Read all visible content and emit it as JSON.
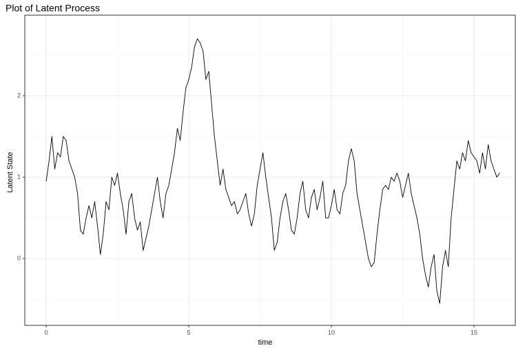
{
  "chart_data": {
    "type": "line",
    "title": "Plot of Latent Process",
    "xlabel": "time",
    "ylabel": "Latent State",
    "xlim": [
      -0.75,
      16.45
    ],
    "ylim": [
      -0.82,
      2.99
    ],
    "xticks": [
      0,
      5,
      10,
      15
    ],
    "yticks": [
      0,
      1,
      2
    ],
    "x_minor_ticks": [
      2.5,
      7.5,
      12.5
    ],
    "y_minor_ticks": [
      -0.5,
      0.5,
      1.5,
      2.5
    ],
    "grid": true,
    "x": [
      0,
      0.1,
      0.2,
      0.3,
      0.4,
      0.5,
      0.6,
      0.7,
      0.8,
      0.9,
      1,
      1.1,
      1.2,
      1.3,
      1.4,
      1.5,
      1.6,
      1.7,
      1.8,
      1.9,
      2,
      2.1,
      2.2,
      2.3,
      2.4,
      2.5,
      2.6,
      2.7,
      2.8,
      2.9,
      3,
      3.1,
      3.2,
      3.3,
      3.4,
      3.5,
      3.6,
      3.7,
      3.8,
      3.9,
      4,
      4.1,
      4.2,
      4.3,
      4.4,
      4.5,
      4.6,
      4.7,
      4.8,
      4.9,
      5,
      5.1,
      5.2,
      5.3,
      5.4,
      5.5,
      5.6,
      5.7,
      5.8,
      5.9,
      6,
      6.1,
      6.2,
      6.3,
      6.4,
      6.5,
      6.6,
      6.7,
      6.8,
      6.9,
      7,
      7.1,
      7.2,
      7.3,
      7.4,
      7.5,
      7.6,
      7.7,
      7.8,
      7.9,
      8,
      8.1,
      8.2,
      8.3,
      8.4,
      8.5,
      8.6,
      8.7,
      8.8,
      8.9,
      9,
      9.1,
      9.2,
      9.3,
      9.4,
      9.5,
      9.6,
      9.7,
      9.8,
      9.9,
      10,
      10.1,
      10.2,
      10.3,
      10.4,
      10.5,
      10.6,
      10.7,
      10.8,
      10.9,
      11,
      11.1,
      11.2,
      11.3,
      11.4,
      11.5,
      11.6,
      11.7,
      11.8,
      11.9,
      12,
      12.1,
      12.2,
      12.3,
      12.4,
      12.5,
      12.6,
      12.7,
      12.8,
      12.9,
      13,
      13.1,
      13.2,
      13.3,
      13.4,
      13.5,
      13.6,
      13.7,
      13.8,
      13.9,
      14,
      14.1,
      14.2,
      14.3,
      14.4,
      14.5,
      14.6,
      14.7,
      14.8,
      14.9,
      15,
      15.1,
      15.2,
      15.3,
      15.4,
      15.5,
      15.6,
      15.7,
      15.8,
      15.9
    ],
    "series": [
      {
        "name": "latent",
        "color": "#000000",
        "values": [
          0.95,
          1.2,
          1.5,
          1.1,
          1.3,
          1.25,
          1.5,
          1.45,
          1.2,
          1.1,
          1.0,
          0.8,
          0.35,
          0.3,
          0.5,
          0.65,
          0.5,
          0.7,
          0.4,
          0.05,
          0.3,
          0.7,
          0.6,
          1.0,
          0.9,
          1.05,
          0.8,
          0.6,
          0.3,
          0.7,
          0.8,
          0.5,
          0.35,
          0.45,
          0.1,
          0.25,
          0.4,
          0.6,
          0.8,
          1.0,
          0.7,
          0.5,
          0.8,
          0.9,
          1.1,
          1.3,
          1.6,
          1.45,
          1.8,
          2.1,
          2.2,
          2.35,
          2.6,
          2.7,
          2.65,
          2.55,
          2.2,
          2.3,
          1.9,
          1.5,
          1.2,
          0.9,
          1.1,
          0.85,
          0.75,
          0.65,
          0.7,
          0.55,
          0.6,
          0.7,
          0.8,
          0.55,
          0.4,
          0.55,
          0.9,
          1.1,
          1.3,
          1.0,
          0.75,
          0.5,
          0.1,
          0.2,
          0.5,
          0.7,
          0.8,
          0.6,
          0.35,
          0.3,
          0.5,
          0.8,
          0.95,
          0.6,
          0.5,
          0.75,
          0.85,
          0.6,
          0.75,
          0.95,
          0.5,
          0.5,
          0.65,
          0.85,
          0.6,
          0.55,
          0.8,
          0.9,
          1.2,
          1.35,
          1.2,
          0.8,
          0.6,
          0.4,
          0.2,
          0.0,
          -0.1,
          -0.05,
          0.3,
          0.6,
          0.85,
          0.9,
          0.85,
          1.0,
          0.95,
          1.05,
          0.95,
          0.75,
          0.9,
          1.05,
          0.8,
          0.65,
          0.5,
          0.3,
          0.0,
          -0.2,
          -0.35,
          -0.1,
          0.05,
          -0.4,
          -0.55,
          -0.1,
          0.1,
          -0.1,
          0.5,
          0.85,
          1.2,
          1.1,
          1.3,
          1.2,
          1.45,
          1.3,
          1.25,
          1.2,
          1.05,
          1.3,
          1.1,
          1.4,
          1.2,
          1.1,
          1.0,
          1.05
        ]
      }
    ]
  }
}
